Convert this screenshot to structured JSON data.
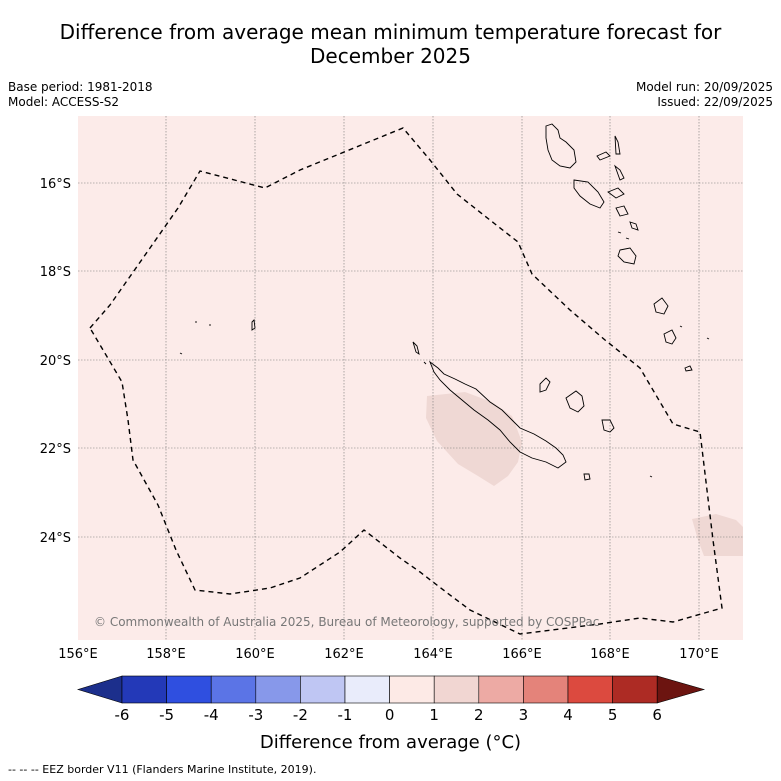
{
  "title": {
    "line1": "Difference from average mean minimum temperature forecast for",
    "line2": "December 2025"
  },
  "meta": {
    "base_period": "Base period: 1981-2018",
    "model": "Model: ACCESS-S2",
    "model_run": "Model run: 20/09/2025",
    "issued": "Issued: 22/09/2025"
  },
  "map": {
    "lon_labels": [
      "156°E",
      "158°E",
      "160°E",
      "162°E",
      "164°E",
      "166°E",
      "168°E",
      "170°E"
    ],
    "lat_labels": [
      "16°S",
      "18°S",
      "20°S",
      "22°S",
      "24°S"
    ],
    "copyright": "© Commonwealth of Australia 2025, Bureau of Meteorology, supported by COSPPac",
    "background_color": "#fcebe9",
    "anomaly_patch_color": "#efd8d4"
  },
  "colorbar": {
    "ticks": [
      "-6",
      "-5",
      "-4",
      "-3",
      "-2",
      "-1",
      "0",
      "1",
      "2",
      "3",
      "4",
      "5",
      "6"
    ],
    "colors": [
      "#1c2f8c",
      "#2339b8",
      "#2f4fe0",
      "#5b74e6",
      "#8798ea",
      "#bfc6f3",
      "#e9ecfb",
      "#fdeae6",
      "#f1d6d2",
      "#edaaa4",
      "#e4837a",
      "#dc4a3f",
      "#ad2b24",
      "#6c1410"
    ],
    "label": "Difference from average (°C)"
  },
  "footer": "--  --  -- EEZ border V11 (Flanders Marine Institute, 2019)."
}
